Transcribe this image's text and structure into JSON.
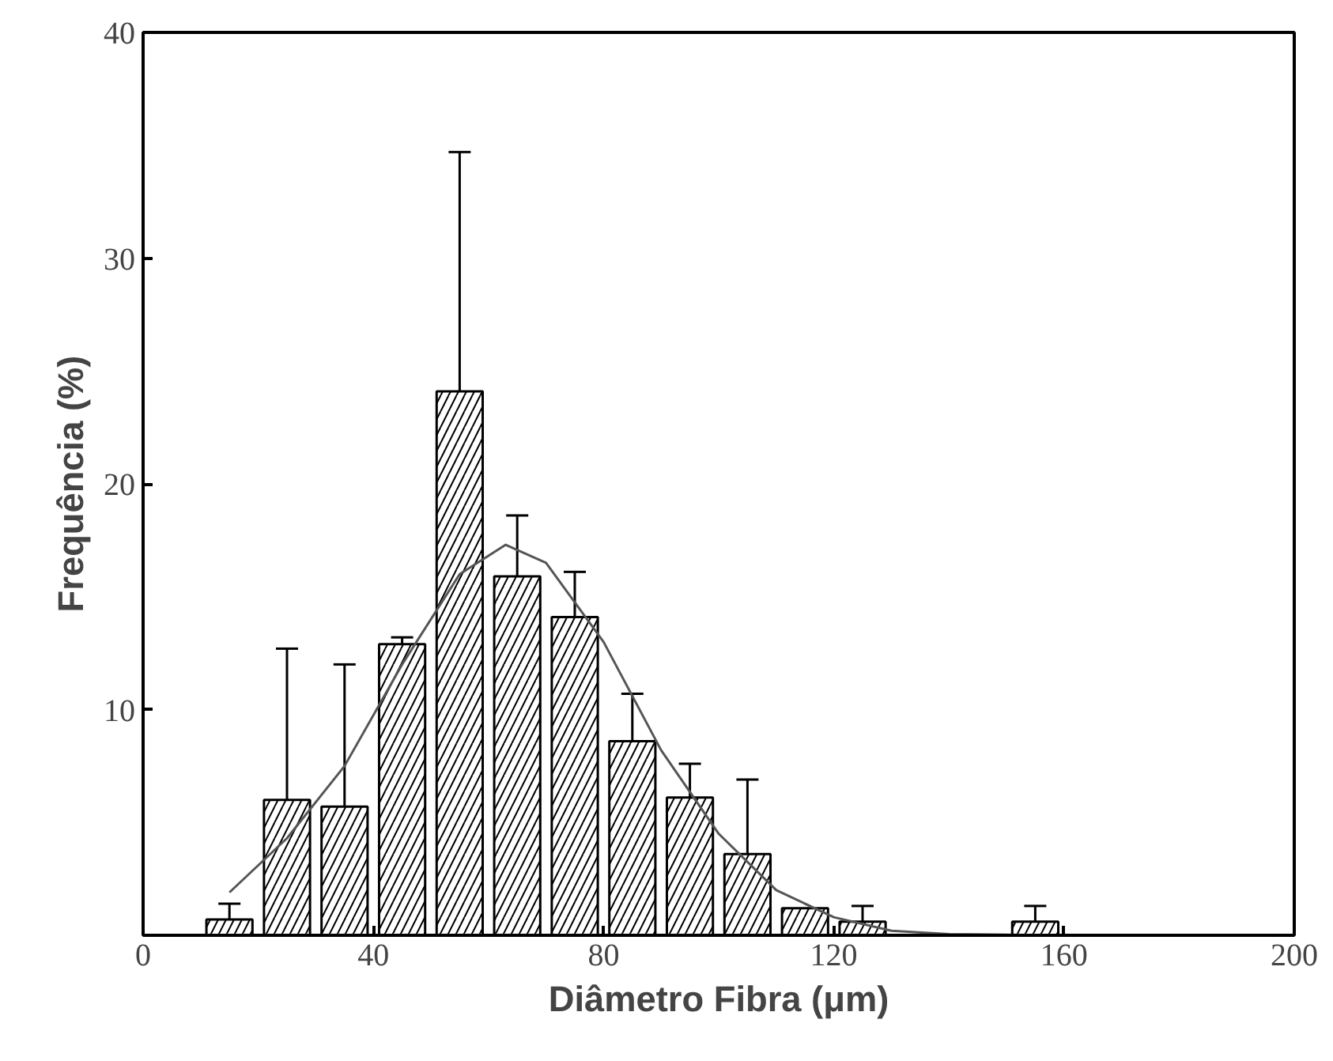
{
  "chart_data": {
    "type": "bar",
    "xlabel": "Diâmetro Fibra (μm)",
    "ylabel": "Frequência (%)",
    "xlim": [
      0,
      200
    ],
    "ylim": [
      0,
      40
    ],
    "xticks": [
      0,
      40,
      80,
      120,
      160,
      200
    ],
    "yticks": [
      10,
      20,
      30,
      40
    ],
    "series": [
      {
        "color": "#ffffff",
        "x": [
          15,
          25,
          35,
          45,
          55,
          65,
          75,
          85,
          95,
          105,
          115,
          125,
          155
        ],
        "values": [
          0.7,
          6.0,
          5.7,
          12.9,
          24.1,
          15.9,
          14.1,
          8.6,
          6.1,
          3.6,
          1.2,
          0.6,
          0.6
        ],
        "errors": [
          0.7,
          6.7,
          6.3,
          0.3,
          10.6,
          2.7,
          2.0,
          2.1,
          1.5,
          3.3,
          null,
          0.7,
          0.7
        ]
      },
      {
        "type": "line",
        "color": "#555555",
        "x": [
          15,
          25,
          35,
          45,
          55,
          63,
          70,
          80,
          90,
          100,
          110,
          120,
          130,
          140,
          160,
          200
        ],
        "values": [
          1.9,
          4.3,
          7.5,
          12.0,
          16.0,
          17.3,
          16.5,
          13.0,
          8.2,
          4.5,
          2.0,
          0.8,
          0.2,
          0.05,
          0,
          0
        ]
      }
    ]
  }
}
